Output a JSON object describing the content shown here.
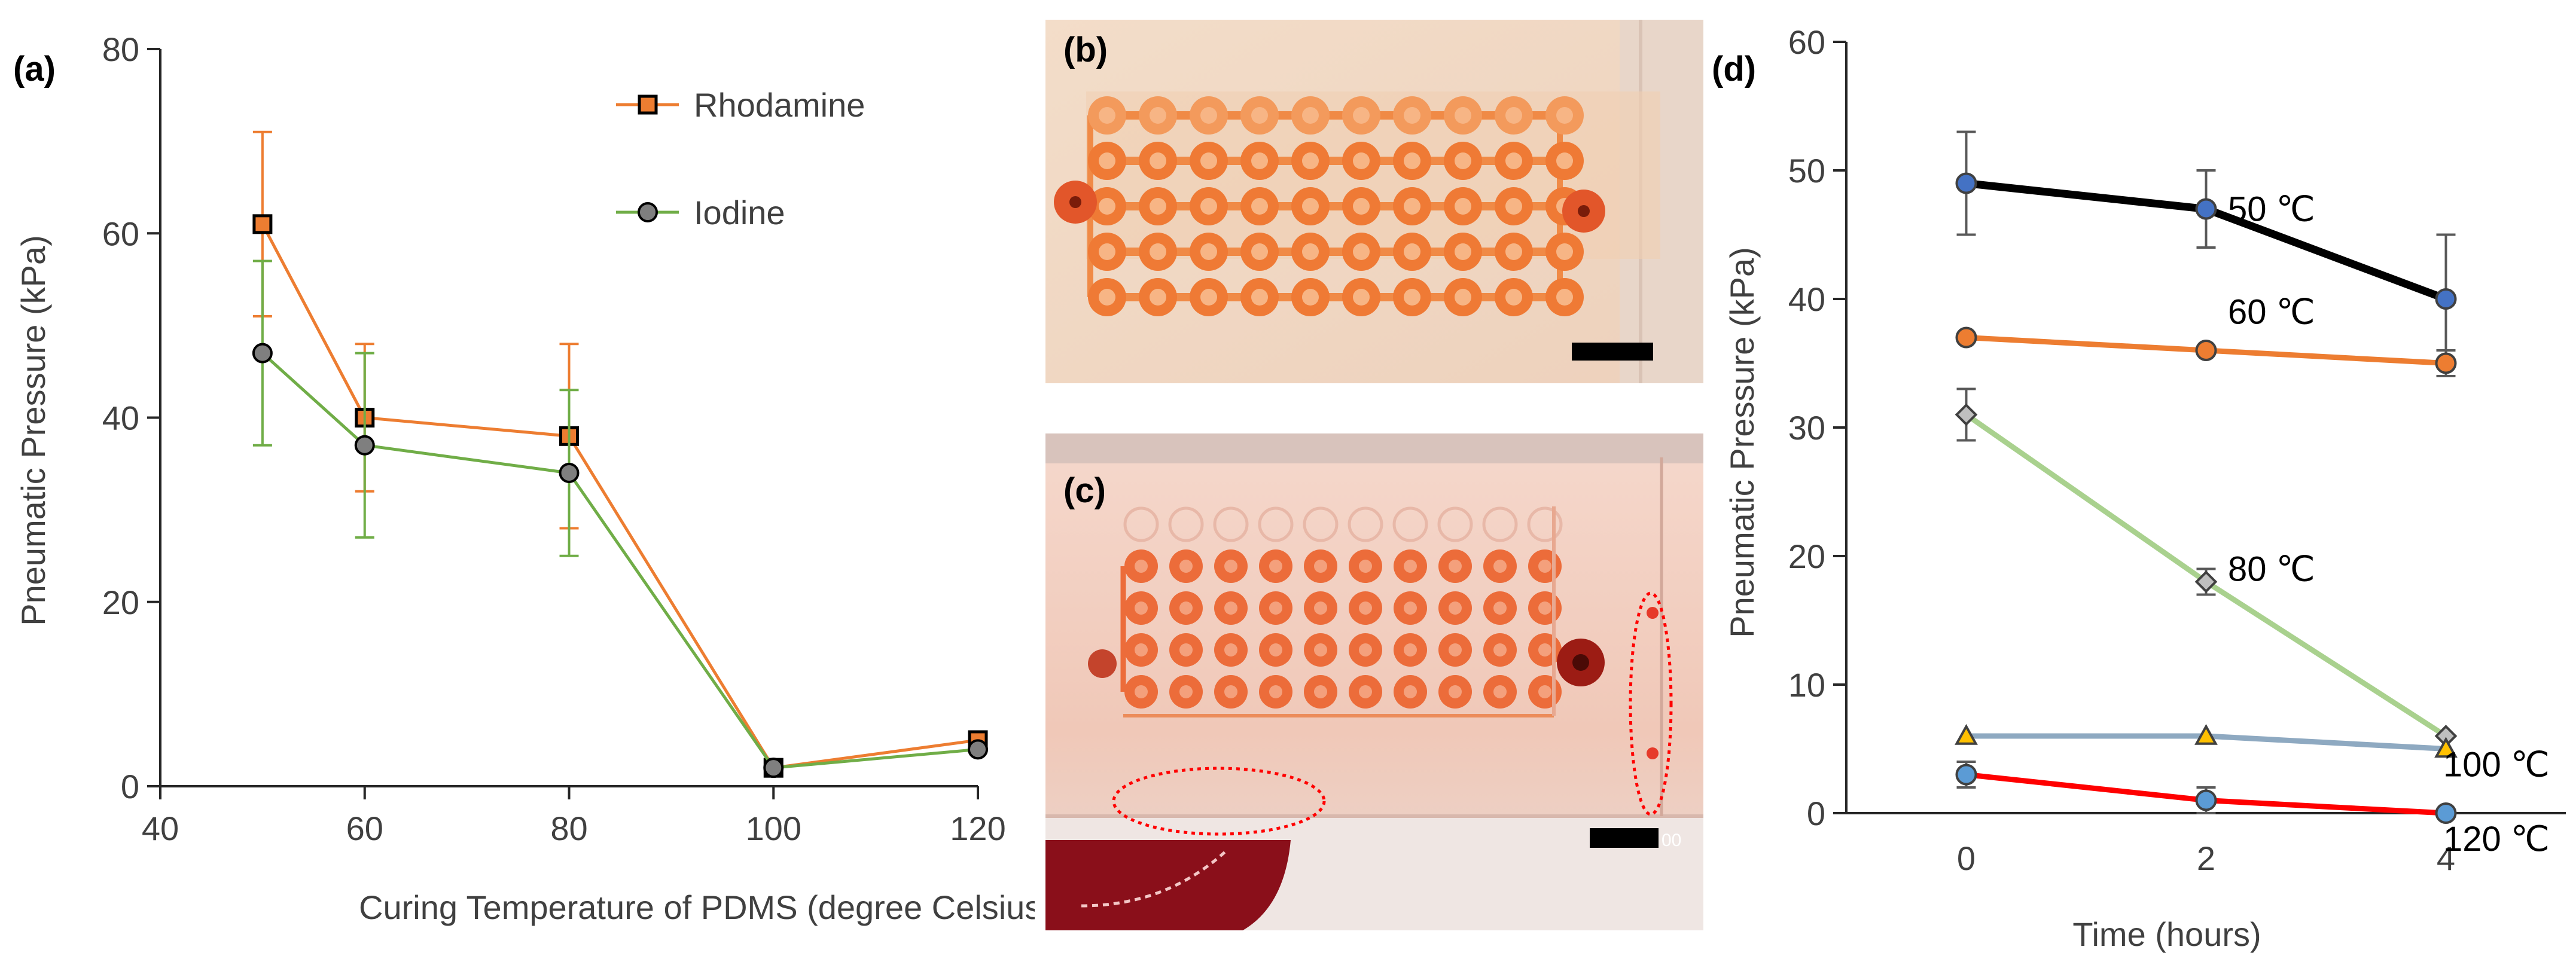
{
  "panels": {
    "a": "(a)",
    "b": "(b)",
    "c": "(c)",
    "d": "(d)"
  },
  "photo_c_scale_text": "00",
  "chart_data": [
    {
      "type": "line",
      "panel": "(a)",
      "xlabel": "Curing Temperature of PDMS (degree Celsius)",
      "ylabel": "Pneumatic Pressure (kPa)",
      "xlim": [
        40,
        120
      ],
      "ylim": [
        0,
        80
      ],
      "xticks": [
        40,
        60,
        80,
        100,
        120
      ],
      "yticks": [
        0,
        20,
        40,
        60,
        80
      ],
      "grid": false,
      "legend": "top-right",
      "series": [
        {
          "name": "Rhodamine",
          "color": "#ED7D31",
          "marker": "square",
          "x": [
            50,
            60,
            80,
            100,
            120
          ],
          "y": [
            61,
            40,
            38,
            2,
            5
          ],
          "err": [
            10,
            8,
            10,
            0,
            0
          ]
        },
        {
          "name": "Iodine",
          "color": "#70AD47",
          "marker": "circle",
          "x": [
            50,
            60,
            80,
            100,
            120
          ],
          "y": [
            47,
            37,
            34,
            2,
            4
          ],
          "err": [
            10,
            10,
            9,
            0,
            0
          ]
        }
      ]
    },
    {
      "type": "line",
      "panel": "(d)",
      "xlabel": "Time (hours)",
      "ylabel": "Pneumatic Pressure (kPa)",
      "xlim": [
        -1,
        5
      ],
      "ylim": [
        0,
        60
      ],
      "xticks": [
        0,
        2,
        4
      ],
      "yticks": [
        0,
        10,
        20,
        30,
        40,
        50,
        60
      ],
      "grid": false,
      "series": [
        {
          "name": "50 ℃",
          "color": "#000000",
          "marker_color": "#4472C4",
          "marker": "circle",
          "x": [
            0,
            2,
            4
          ],
          "y": [
            49,
            47,
            40
          ],
          "err": [
            4,
            3,
            5
          ]
        },
        {
          "name": "60 ℃",
          "color": "#ED7D31",
          "marker_color": "#ED7D31",
          "marker": "circle",
          "x": [
            0,
            2,
            4
          ],
          "y": [
            37,
            36,
            35
          ],
          "err": [
            0,
            0,
            1
          ]
        },
        {
          "name": "80 ℃",
          "color": "#A9D18E",
          "marker_color": "#BFBFBF",
          "marker": "diamond",
          "x": [
            0,
            2,
            4
          ],
          "y": [
            31,
            18,
            6
          ],
          "err": [
            2,
            1,
            0
          ]
        },
        {
          "name": "100 ℃",
          "color": "#8EA9C1",
          "marker_color": "#FFC000",
          "marker": "triangle",
          "x": [
            0,
            2,
            4
          ],
          "y": [
            6,
            6,
            5
          ],
          "err": [
            0,
            0,
            0
          ]
        },
        {
          "name": "120 ℃",
          "color": "#FF0000",
          "marker_color": "#5B9BD5",
          "marker": "circle",
          "x": [
            0,
            2,
            4
          ],
          "y": [
            3,
            1,
            0
          ],
          "err": [
            1,
            1,
            0
          ]
        }
      ]
    }
  ]
}
